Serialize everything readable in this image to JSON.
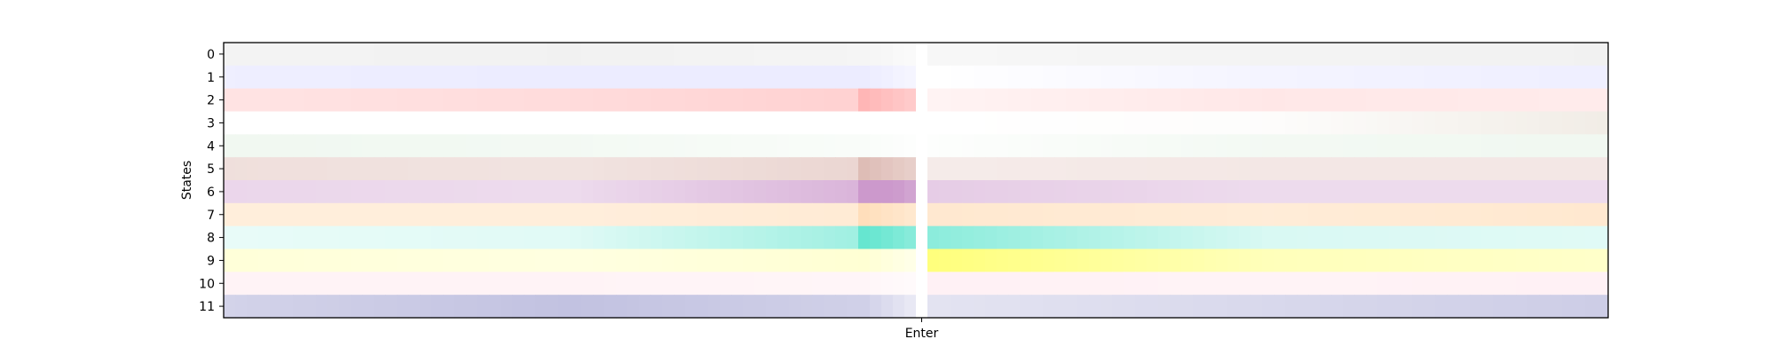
{
  "chart_data": {
    "type": "heatmap",
    "title": "",
    "xlabel": "",
    "ylabel": "States",
    "x_tick_labels": [
      "Enter"
    ],
    "y_tick_labels": [
      "0",
      "1",
      "2",
      "3",
      "4",
      "5",
      "6",
      "7",
      "8",
      "9",
      "10",
      "11"
    ],
    "n_columns": 120,
    "event_column": 60,
    "rows": [
      {
        "state": "0",
        "color": "#d8d8d8",
        "before": [
          0.3,
          0.35,
          0.25
        ],
        "after": [
          0.2,
          0.3,
          0.35
        ]
      },
      {
        "state": "1",
        "color": "#c8c8ff",
        "before": [
          0.3,
          0.35,
          0.35
        ],
        "after": [
          0.0,
          0.2,
          0.3
        ]
      },
      {
        "state": "2",
        "color": "#ffb0b0",
        "before": [
          0.35,
          0.45,
          0.6
        ],
        "after": [
          0.15,
          0.3,
          0.25
        ]
      },
      {
        "state": "3",
        "color": "#d8cbb8",
        "before": [
          0.0,
          0.0,
          0.0
        ],
        "after": [
          0.0,
          0.05,
          0.35
        ]
      },
      {
        "state": "4",
        "color": "#cfe8d0",
        "before": [
          0.3,
          0.25,
          0.1
        ],
        "after": [
          0.05,
          0.25,
          0.3
        ]
      },
      {
        "state": "5",
        "color": "#d8b0a8",
        "before": [
          0.4,
          0.35,
          0.55
        ],
        "after": [
          0.25,
          0.3,
          0.3
        ]
      },
      {
        "state": "6",
        "color": "#cc99cc",
        "before": [
          0.4,
          0.35,
          0.8
        ],
        "after": [
          0.5,
          0.35,
          0.35
        ]
      },
      {
        "state": "7",
        "color": "#ffd9b0",
        "before": [
          0.45,
          0.45,
          0.55
        ],
        "after": [
          0.6,
          0.5,
          0.6
        ]
      },
      {
        "state": "8",
        "color": "#66e6d0",
        "before": [
          0.15,
          0.2,
          0.7
        ],
        "after": [
          0.75,
          0.25,
          0.2
        ]
      },
      {
        "state": "9",
        "color": "#ffff66",
        "before": [
          0.25,
          0.2,
          0.3
        ],
        "after": [
          0.85,
          0.45,
          0.35
        ]
      },
      {
        "state": "10",
        "color": "#ffd0dc",
        "before": [
          0.25,
          0.25,
          0.2
        ],
        "after": [
          0.3,
          0.25,
          0.3
        ]
      },
      {
        "state": "11",
        "color": "#9090c8",
        "before": [
          0.4,
          0.55,
          0.4
        ],
        "after": [
          0.25,
          0.35,
          0.45
        ]
      }
    ]
  }
}
